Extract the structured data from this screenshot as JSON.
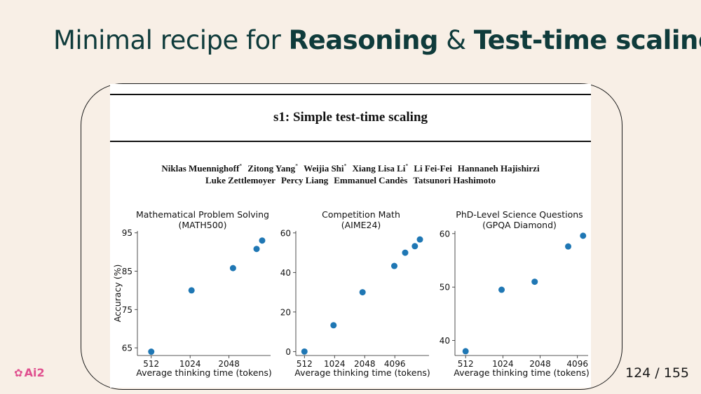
{
  "slide": {
    "title_prefix": "Minimal recipe for ",
    "title_bold1": "Reasoning",
    "title_mid": " & ",
    "title_bold2": "Test-time scaling",
    "brand": "Ai2",
    "page_current": "124",
    "page_sep": " / ",
    "page_total": "155"
  },
  "paper": {
    "title": "s1: Simple test-time scaling",
    "authors_line1": [
      {
        "name": "Niklas Muennighoff",
        "sup": "*"
      },
      {
        "name": "Zitong Yang",
        "sup": "*"
      },
      {
        "name": "Weijia Shi",
        "sup": "*"
      },
      {
        "name": "Xiang Lisa Li",
        "sup": "*"
      },
      {
        "name": "Li Fei-Fei",
        "sup": ""
      },
      {
        "name": "Hannaneh Hajishirzi",
        "sup": ""
      }
    ],
    "authors_line2": [
      {
        "name": "Luke Zettlemoyer",
        "sup": ""
      },
      {
        "name": "Percy Liang",
        "sup": ""
      },
      {
        "name": "Emmanuel Candès",
        "sup": ""
      },
      {
        "name": "Tatsunori Hashimoto",
        "sup": ""
      }
    ]
  },
  "colors": {
    "background": "#f8efe6",
    "title": "#0f3b3b",
    "point": "#1f77b4",
    "brand": "#e0508f"
  },
  "chart_data": [
    {
      "type": "scatter",
      "title": "Mathematical Problem Solving",
      "subtitle": "(MATH500)",
      "xlabel": "Average thinking time (tokens)",
      "ylabel": "Accuracy (%)",
      "xscale": "log2",
      "xticks": [
        512,
        1024,
        2048
      ],
      "yticks": [
        65,
        75,
        85,
        95
      ],
      "xlim": [
        400,
        4300
      ],
      "ylim": [
        63,
        95.5
      ],
      "x": [
        512,
        1050,
        2200,
        3350,
        3700
      ],
      "y": [
        64,
        80,
        85.8,
        90.8,
        93
      ]
    },
    {
      "type": "scatter",
      "title": "Competition Math",
      "subtitle": "(AIME24)",
      "xlabel": "Average thinking time (tokens)",
      "ylabel": "",
      "xscale": "log2",
      "xticks": [
        512,
        1024,
        2048,
        4096
      ],
      "yticks": [
        0,
        20,
        40,
        60
      ],
      "xlim": [
        420,
        9000
      ],
      "ylim": [
        -2,
        61
      ],
      "x": [
        512,
        1000,
        1950,
        4050,
        5200,
        6500,
        7300
      ],
      "y": [
        0,
        13.3,
        30,
        43.3,
        50,
        53.3,
        56.7
      ]
    },
    {
      "type": "scatter",
      "title": "PhD-Level Science Questions",
      "subtitle": "(GPQA Diamond)",
      "xlabel": "Average thinking time (tokens)",
      "ylabel": "",
      "xscale": "log2",
      "xticks": [
        512,
        1024,
        2048,
        4096
      ],
      "yticks": [
        40,
        50,
        60
      ],
      "xlim": [
        420,
        5000
      ],
      "ylim": [
        37.2,
        60.5
      ],
      "x": [
        512,
        1000,
        1850,
        3450,
        4550
      ],
      "y": [
        38,
        49.5,
        51,
        57.6,
        59.6
      ]
    }
  ]
}
